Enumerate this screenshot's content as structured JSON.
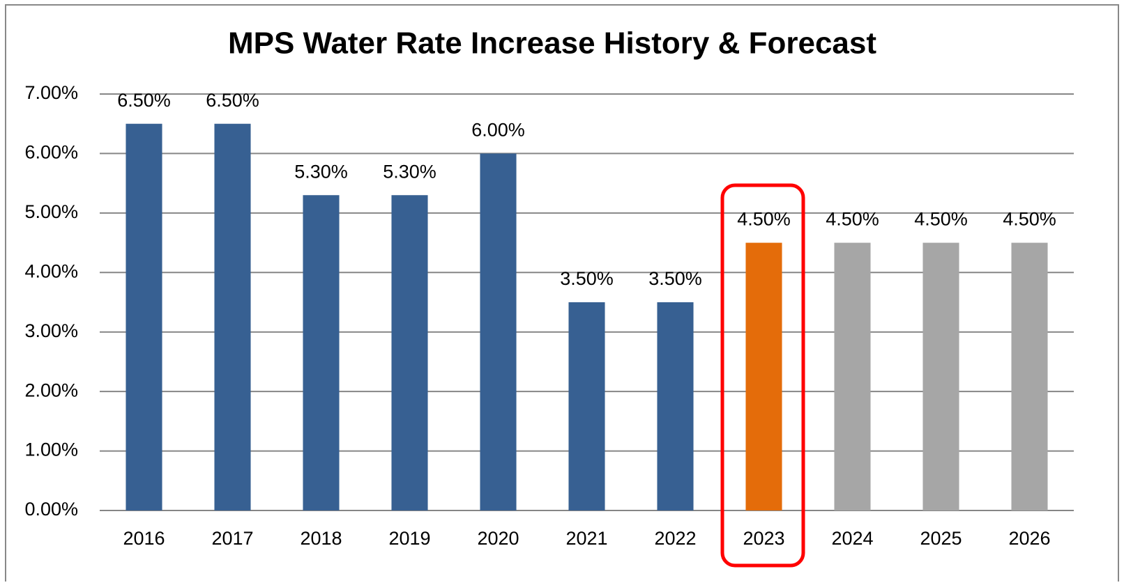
{
  "chart_data": {
    "type": "bar",
    "title": "MPS Water Rate Increase History & Forecast",
    "categories": [
      "2016",
      "2017",
      "2018",
      "2019",
      "2020",
      "2021",
      "2022",
      "2023",
      "2024",
      "2025",
      "2026"
    ],
    "values": [
      6.5,
      6.5,
      5.3,
      5.3,
      6.0,
      3.5,
      3.5,
      4.5,
      4.5,
      4.5,
      4.5
    ],
    "value_labels": [
      "6.50%",
      "6.50%",
      "5.30%",
      "5.30%",
      "6.00%",
      "3.50%",
      "3.50%",
      "4.50%",
      "4.50%",
      "4.50%",
      "4.50%"
    ],
    "colors": [
      "#376092",
      "#376092",
      "#376092",
      "#376092",
      "#376092",
      "#376092",
      "#376092",
      "#e46c0a",
      "#a6a6a6",
      "#a6a6a6",
      "#a6a6a6"
    ],
    "ylim": [
      0,
      7
    ],
    "yticks": [
      {
        "value": 0,
        "label": "0.00%"
      },
      {
        "value": 1,
        "label": "1.00%"
      },
      {
        "value": 2,
        "label": "2.00%"
      },
      {
        "value": 3,
        "label": "3.00%"
      },
      {
        "value": 4,
        "label": "4.00%"
      },
      {
        "value": 5,
        "label": "5.00%"
      },
      {
        "value": 6,
        "label": "6.00%"
      },
      {
        "value": 7,
        "label": "7.00%"
      }
    ],
    "grid": true
  }
}
